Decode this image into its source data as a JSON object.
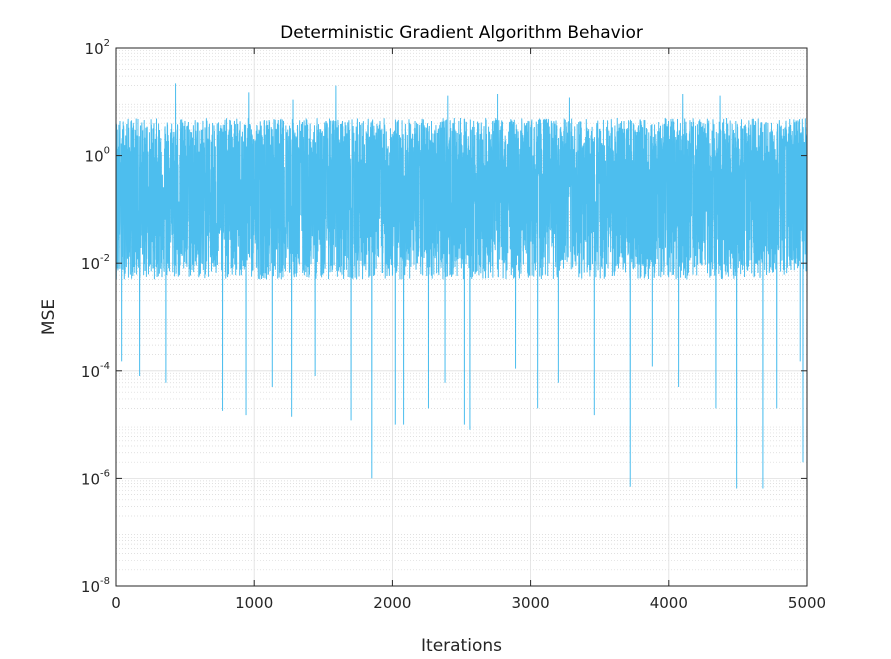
{
  "chart_data": {
    "type": "line",
    "title": "Deterministic Gradient Algorithm Behavior",
    "xlabel": "Iterations",
    "ylabel": "MSE",
    "xlim": [
      0,
      5000
    ],
    "ylim": [
      1e-08,
      100
    ],
    "yscale": "log",
    "grid": true,
    "minor_grid": true,
    "x_ticks": [
      "0",
      "1000",
      "2000",
      "3000",
      "4000",
      "5000"
    ],
    "y_tick_base": "10",
    "y_ticks_exponents": [
      "-8",
      "-6",
      "-4",
      "-2",
      "0",
      "2"
    ],
    "series": [
      {
        "color": "#4DBEEE",
        "n_points": 5000,
        "typical_band": [
          0.005,
          5
        ],
        "center_value": 0.2,
        "peaks": [
          {
            "x": 430,
            "y": 22
          },
          {
            "x": 1590,
            "y": 20
          },
          {
            "x": 960,
            "y": 15
          },
          {
            "x": 2760,
            "y": 14
          },
          {
            "x": 4100,
            "y": 14
          },
          {
            "x": 2400,
            "y": 13
          },
          {
            "x": 4370,
            "y": 13
          },
          {
            "x": 3280,
            "y": 12
          },
          {
            "x": 1280,
            "y": 11
          }
        ],
        "dips": [
          {
            "x": 1850,
            "y": 1e-06
          },
          {
            "x": 3720,
            "y": 7e-07
          },
          {
            "x": 4490,
            "y": 6.5e-07
          },
          {
            "x": 4680,
            "y": 6.5e-07
          },
          {
            "x": 4970,
            "y": 2e-06
          },
          {
            "x": 2560,
            "y": 8e-06
          },
          {
            "x": 2520,
            "y": 1e-05
          },
          {
            "x": 2080,
            "y": 1e-05
          },
          {
            "x": 2020,
            "y": 1e-05
          },
          {
            "x": 1700,
            "y": 1.2e-05
          },
          {
            "x": 1270,
            "y": 1.4e-05
          },
          {
            "x": 940,
            "y": 1.5e-05
          },
          {
            "x": 770,
            "y": 1.8e-05
          },
          {
            "x": 3460,
            "y": 1.5e-05
          },
          {
            "x": 3050,
            "y": 2e-05
          },
          {
            "x": 4340,
            "y": 2e-05
          },
          {
            "x": 2260,
            "y": 2e-05
          },
          {
            "x": 4780,
            "y": 2e-05
          },
          {
            "x": 1130,
            "y": 5e-05
          },
          {
            "x": 360,
            "y": 6e-05
          },
          {
            "x": 2380,
            "y": 6e-05
          },
          {
            "x": 3200,
            "y": 6e-05
          },
          {
            "x": 4070,
            "y": 5e-05
          },
          {
            "x": 1440,
            "y": 8e-05
          },
          {
            "x": 170,
            "y": 8e-05
          },
          {
            "x": 40,
            "y": 0.00015
          },
          {
            "x": 4950,
            "y": 0.00015
          },
          {
            "x": 3880,
            "y": 0.00012
          },
          {
            "x": 2890,
            "y": 0.00011
          }
        ]
      }
    ]
  }
}
